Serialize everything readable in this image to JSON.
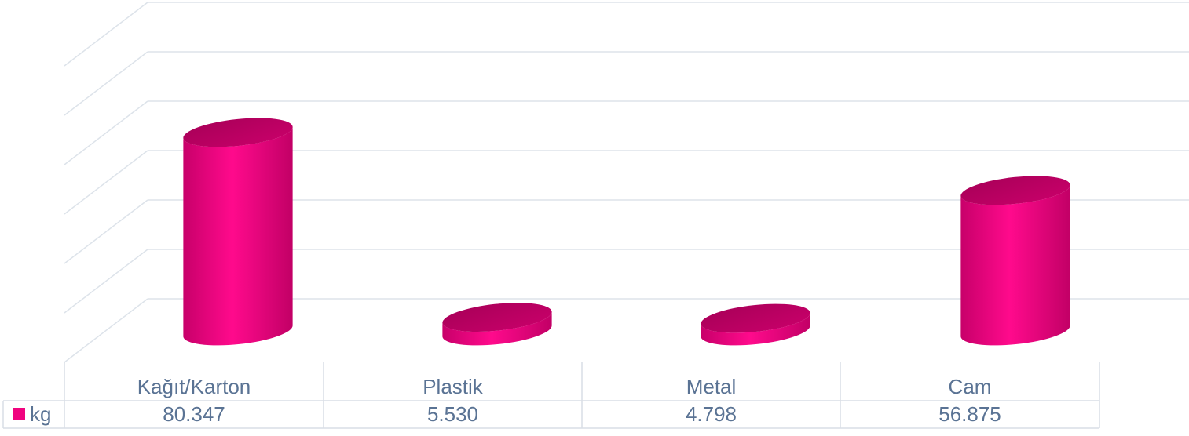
{
  "chart_data": {
    "type": "bar",
    "style": "3d-cylinder",
    "categories": [
      "Kağıt/Karton",
      "Plastik",
      "Metal",
      "Cam"
    ],
    "series": [
      {
        "name": "kg",
        "values": [
          80.347,
          5.53,
          4.798,
          56.875
        ],
        "labels": [
          "80.347",
          "5.530",
          "4.798",
          "56.875"
        ]
      }
    ],
    "ylim": [
      0,
      120
    ],
    "grid": true,
    "legend": "data-table",
    "colors": {
      "bar": "#f0047f",
      "bar_top": "#b8005c",
      "grid": "#dde3ea",
      "text": "#5a7394",
      "table_border": "#d9dee5"
    }
  }
}
